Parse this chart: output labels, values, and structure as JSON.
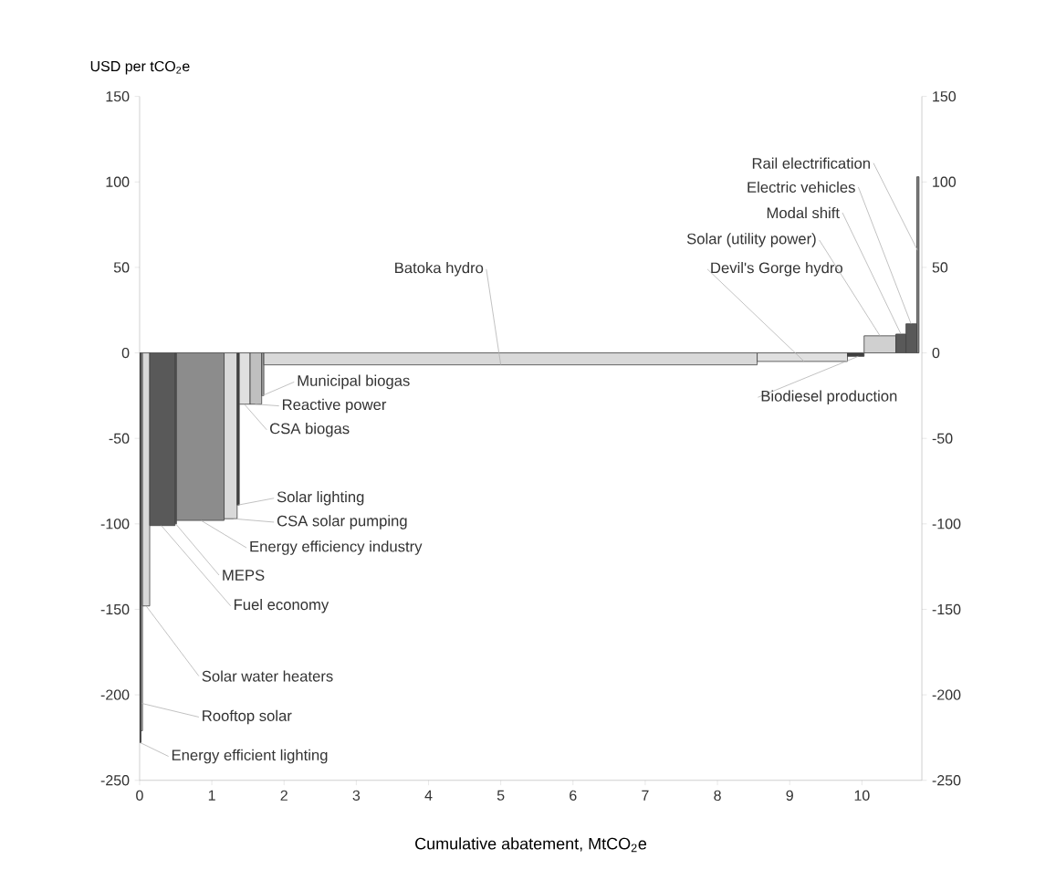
{
  "chart_data": {
    "type": "histogram",
    "xlabel": "Cumulative abatement, MtCO$_{2}$e",
    "ylabel": "USD per tCO$_{2}$e",
    "bins": [
      0,
      0.02,
      0.04,
      0.14,
      0.49,
      0.51,
      1.17,
      1.35,
      1.38,
      1.53,
      1.69,
      1.72,
      8.55,
      9.8,
      10.03,
      10.47,
      10.61,
      10.76,
      10.79
    ],
    "values": [
      -228,
      -221,
      -148,
      -101,
      -100,
      -98,
      -97,
      -89,
      -30,
      -30,
      -25,
      -7,
      -5,
      -2,
      10,
      11,
      17,
      103
    ],
    "colors": [
      "#404040",
      "#bfbfbf",
      "#d9d9d9",
      "#595959",
      "#595959",
      "#8c8c8c",
      "#d9d9d9",
      "#404040",
      "#e0e0e0",
      "#bfbfbf",
      "#a6a6a6",
      "#d9d9d9",
      "#e0e0e0",
      "#404040",
      "#d0d0d0",
      "#595959",
      "#595959",
      "#7f7f7f"
    ],
    "xlim": [
      0,
      10.83
    ],
    "xticks": [
      0,
      1,
      2,
      3,
      4,
      5,
      6,
      7,
      8,
      9,
      10
    ],
    "ylim": [
      -250,
      150
    ],
    "yticks": [
      -250,
      -200,
      -150,
      -100,
      -50,
      0,
      50,
      100,
      150
    ],
    "y2lim": [
      -250,
      150
    ],
    "y2ticks": [
      -250,
      -200,
      -150,
      -100,
      -50,
      0,
      50,
      100,
      150
    ],
    "grid": false,
    "annotations": [
      {
        "text": "Energy efficient lighting",
        "x": 0.01,
        "y": -228
      },
      {
        "text": "Rooftop solar",
        "x": 0.03,
        "y": -205
      },
      {
        "text": "Solar water heaters",
        "x": 0.09,
        "y": -148
      },
      {
        "text": "Fuel economy",
        "x": 0.3,
        "y": -101
      },
      {
        "text": "MEPS",
        "x": 0.5,
        "y": -100
      },
      {
        "text": "Energy efficiency industry",
        "x": 0.85,
        "y": -98
      },
      {
        "text": "CSA solar pumping",
        "x": 1.3,
        "y": -97
      },
      {
        "text": "Solar lighting",
        "x": 1.36,
        "y": -89
      },
      {
        "text": "CSA biogas",
        "x": 1.45,
        "y": -30
      },
      {
        "text": "Reactive power",
        "x": 1.6,
        "y": -30
      },
      {
        "text": "Municipal biogas",
        "x": 1.7,
        "y": -25
      },
      {
        "text": "Batoka hydro",
        "x": 5.0,
        "y": -7
      },
      {
        "text": "Devil's Gorge hydro",
        "x": 9.2,
        "y": -5
      },
      {
        "text": "Biodiesel production",
        "x": 9.95,
        "y": -2
      },
      {
        "text": "Solar (utility power)",
        "x": 10.25,
        "y": 10
      },
      {
        "text": "Modal shift",
        "x": 10.54,
        "y": 11
      },
      {
        "text": "Electric vehicles",
        "x": 10.68,
        "y": 17
      },
      {
        "text": "Rail electrification",
        "x": 10.77,
        "y": 60
      }
    ]
  }
}
